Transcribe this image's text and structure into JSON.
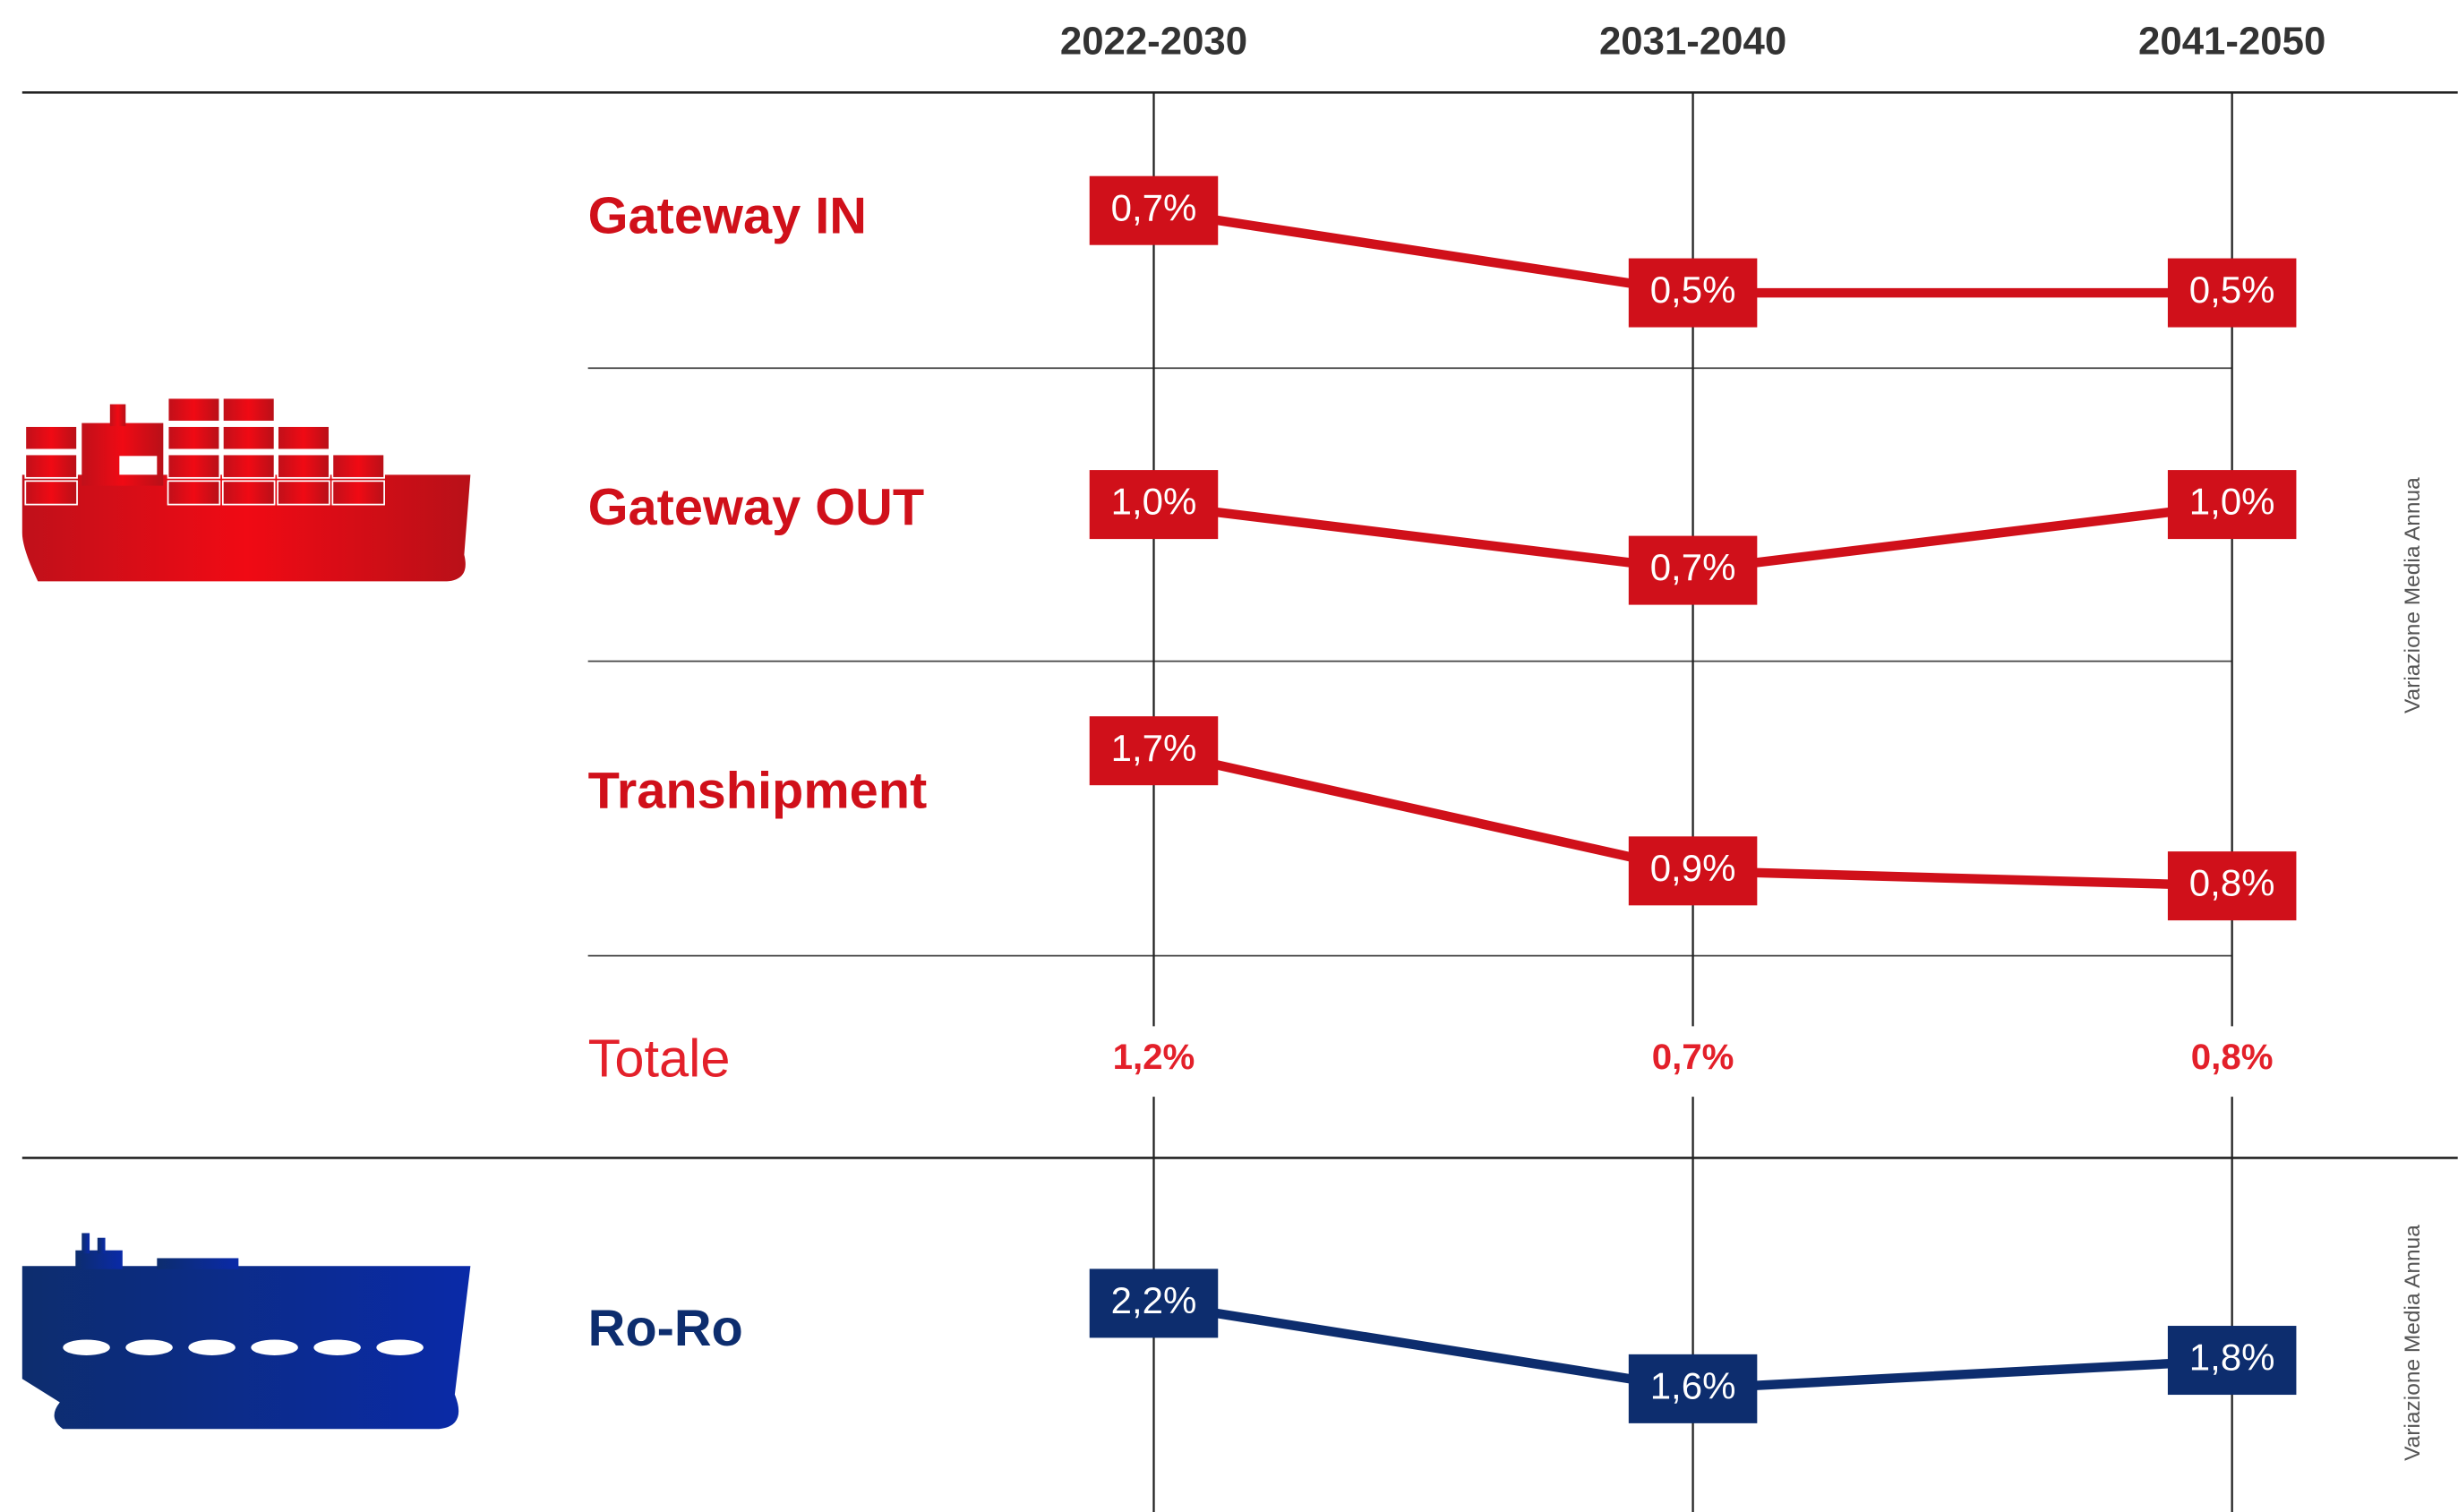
{
  "header": {
    "periods": [
      "2022-2030",
      "2031-2040",
      "2041-2050"
    ]
  },
  "chart_data": [
    {
      "type": "line",
      "name": "Gateway IN",
      "color": "#d0101a",
      "values": [
        0.7,
        0.5,
        0.5
      ],
      "value_labels": [
        "0,7%",
        "0,5%",
        "0,5%"
      ],
      "ylim": [
        0.45,
        0.85
      ]
    },
    {
      "type": "line",
      "name": "Gateway OUT",
      "color": "#d0101a",
      "values": [
        1.0,
        0.7,
        1.0
      ],
      "value_labels": [
        "1,0%",
        "0,7%",
        "1,0%"
      ],
      "ylim": [
        0.55,
        1.3
      ]
    },
    {
      "type": "line",
      "name": "Transhipment",
      "color": "#d0101a",
      "values": [
        1.7,
        0.9,
        0.8
      ],
      "value_labels": [
        "1,7%",
        "0,9%",
        "0,8%"
      ],
      "ylim": [
        0.7,
        1.9
      ]
    },
    {
      "type": "line",
      "name": "Ro-Ro",
      "color": "#0d2d6e",
      "values": [
        2.2,
        1.6,
        1.8
      ],
      "value_labels": [
        "2,2%",
        "1,6%",
        "1,8%"
      ],
      "ylim": [
        1.45,
        2.55
      ]
    }
  ],
  "totale": {
    "label": "Totale",
    "values": [
      "1,2%",
      "0,7%",
      "0,8%"
    ]
  },
  "axis_note": "Variazione Media Annua"
}
